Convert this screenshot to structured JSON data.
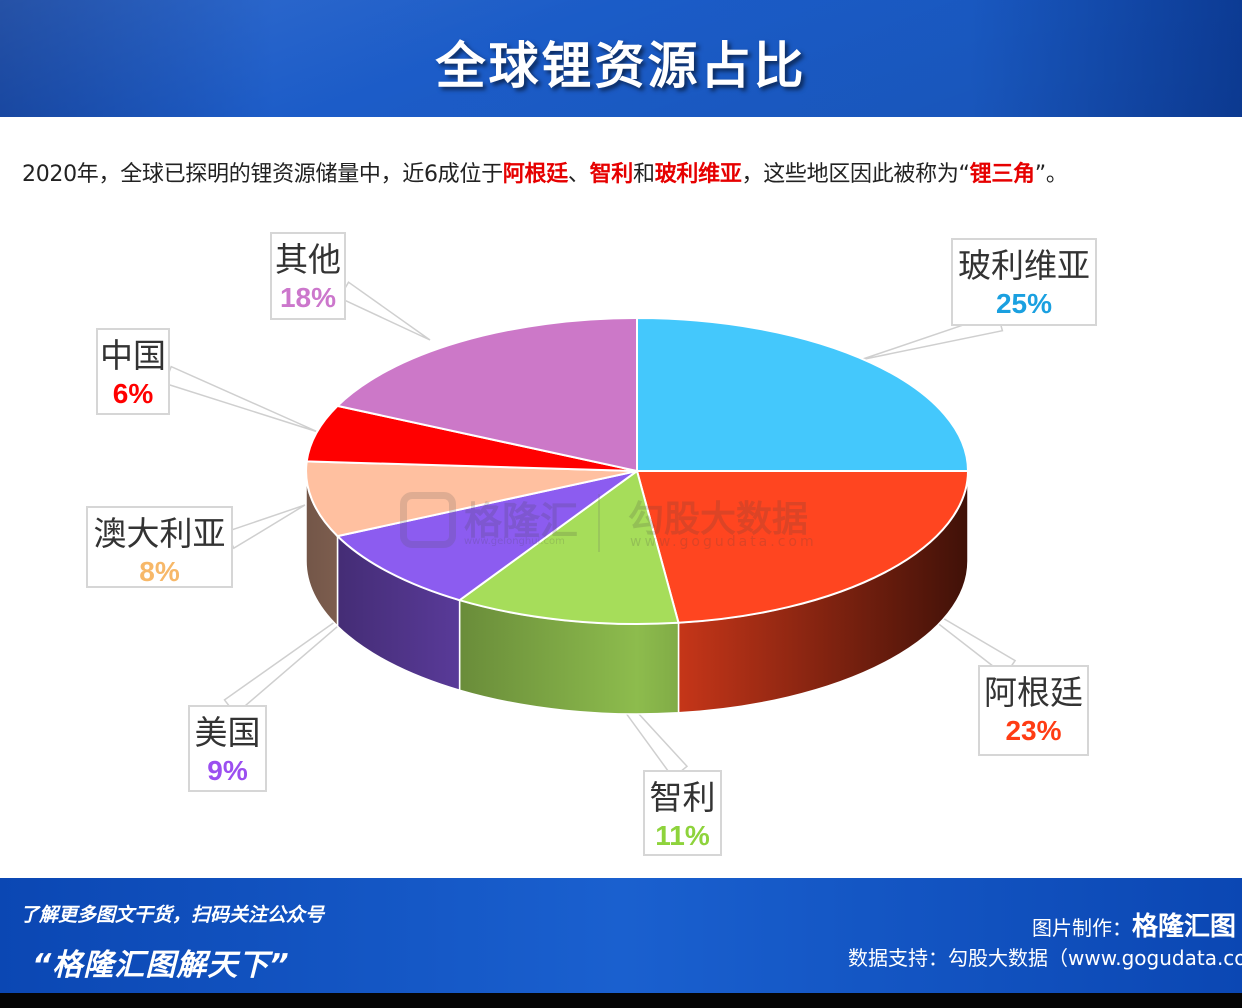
{
  "header": {
    "title": "全球锂资源占比"
  },
  "subtitle": {
    "part1": "2020年，全球已探明的锂资源储量中，近6成位于",
    "hl1": "阿根廷",
    "part2": "、",
    "hl2": "智利",
    "part3": "和",
    "hl3": "玻利维亚",
    "part4": "，这些地区因此被称为“",
    "hl4": "锂三角",
    "part5": "”。"
  },
  "chart_data": {
    "type": "pie",
    "title": "全球锂资源占比",
    "three_d": true,
    "slices": [
      {
        "label": "玻利维亚",
        "value": 25,
        "pct_label": "25%",
        "color": "#44c8fc",
        "text_color": "#1aa0e0"
      },
      {
        "label": "阿根廷",
        "value": 23,
        "pct_label": "23%",
        "color": "#ff4520",
        "text_color": "#ff3c14"
      },
      {
        "label": "智利",
        "value": 11,
        "pct_label": "11%",
        "color": "#a6dd5a",
        "text_color": "#8ed33c"
      },
      {
        "label": "美国",
        "value": 9,
        "pct_label": "9%",
        "color": "#8c5cf0",
        "text_color": "#9b4ff0"
      },
      {
        "label": "澳大利亚",
        "value": 8,
        "pct_label": "8%",
        "color": "#ffc0a0",
        "text_color": "#f7b869"
      },
      {
        "label": "中国",
        "value": 6,
        "pct_label": "6%",
        "color": "#ff0000",
        "text_color": "#ff0000"
      },
      {
        "label": "其他",
        "value": 18,
        "pct_label": "18%",
        "color": "#cc78c8",
        "text_color": "#cc77cc"
      }
    ]
  },
  "watermark": {
    "brand": "格隆汇",
    "url1": "www.gelonghui.com",
    "brand2": "勾股大数据",
    "url2": "www.gogudata.com"
  },
  "footer": {
    "promo_line1": "了解更多图文干货，扫码关注公众号",
    "promo_line2": "“格隆汇图解天下”",
    "credit_label": "图片制作：",
    "credit_brand": "格隆汇图",
    "data_source": "数据支持：勾股大数据（www.gogudata.com）"
  }
}
